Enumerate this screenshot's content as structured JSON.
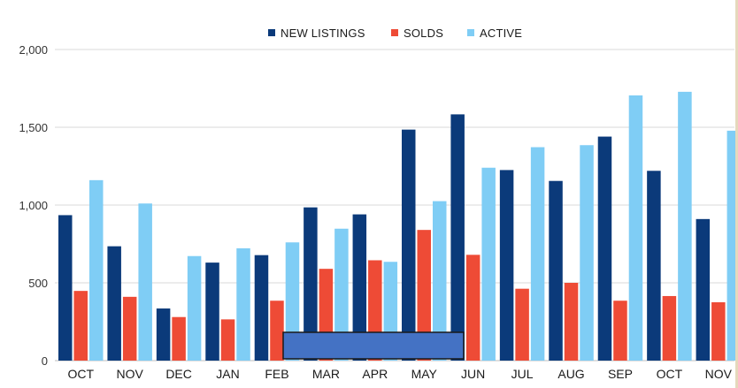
{
  "chart_data": {
    "type": "bar",
    "title": "",
    "xlabel": "",
    "ylabel": "",
    "ylim": [
      0,
      2000
    ],
    "yticks": [
      0,
      500,
      1000,
      1500,
      2000
    ],
    "ytick_labels": [
      "0",
      "500",
      "1,000",
      "1,500",
      "2,000"
    ],
    "grid": true,
    "legend_position": "top-center",
    "categories": [
      "OCT",
      "NOV",
      "DEC",
      "JAN",
      "FEB",
      "MAR",
      "APR",
      "MAY",
      "JUN",
      "JUL",
      "AUG",
      "SEP",
      "OCT",
      "NOV"
    ],
    "series": [
      {
        "name": "NEW LISTINGS",
        "color": "#0b3a7a",
        "values": [
          935,
          735,
          335,
          630,
          678,
          985,
          940,
          1485,
          1583,
          1225,
          1155,
          1440,
          1220,
          910
        ]
      },
      {
        "name": "SOLDS",
        "color": "#ee4b36",
        "values": [
          448,
          410,
          280,
          265,
          385,
          590,
          645,
          840,
          680,
          462,
          500,
          385,
          415,
          375
        ]
      },
      {
        "name": "ACTIVE",
        "color": "#7fcdf5",
        "values": [
          1160,
          1010,
          672,
          722,
          760,
          848,
          635,
          1025,
          1240,
          1372,
          1385,
          1705,
          1728,
          1478
        ]
      }
    ],
    "overlay_box_color": "#4472c4"
  }
}
